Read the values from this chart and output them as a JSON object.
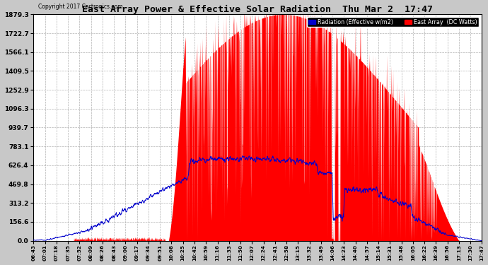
{
  "title": "East Array Power & Effective Solar Radiation  Thu Mar 2  17:47",
  "copyright": "Copyright 2017 Cartronics.com",
  "legend_radiation": "Radiation (Effective w/m2)",
  "legend_east": "East Array  (DC Watts)",
  "bg_color": "#c8c8c8",
  "plot_bg_color": "#ffffff",
  "radiation_color": "#0000cc",
  "east_array_color": "#ff0000",
  "grid_color": "#aaaaaa",
  "yticks": [
    0.0,
    156.6,
    313.2,
    469.8,
    626.4,
    783.1,
    939.7,
    1096.3,
    1252.9,
    1409.5,
    1566.1,
    1722.7,
    1879.3
  ],
  "ytick_labels": [
    "0.0",
    "156.6",
    "313.2",
    "469.8",
    "626.4",
    "783.1",
    "939.7",
    "1096.3",
    "1252.9",
    "1409.5",
    "1566.1",
    "1722.7",
    "1879.3"
  ],
  "ymax": 1879.3,
  "xtick_labels": [
    "06:43",
    "07:01",
    "07:18",
    "07:35",
    "07:52",
    "08:09",
    "08:26",
    "08:43",
    "09:00",
    "09:17",
    "09:34",
    "09:51",
    "10:08",
    "10:25",
    "10:42",
    "10:59",
    "11:16",
    "11:33",
    "11:50",
    "12:07",
    "12:24",
    "12:41",
    "12:58",
    "13:15",
    "13:32",
    "13:49",
    "14:06",
    "14:23",
    "14:40",
    "14:57",
    "15:14",
    "15:31",
    "15:48",
    "16:05",
    "16:22",
    "16:39",
    "16:56",
    "17:13",
    "17:30",
    "17:47"
  ]
}
